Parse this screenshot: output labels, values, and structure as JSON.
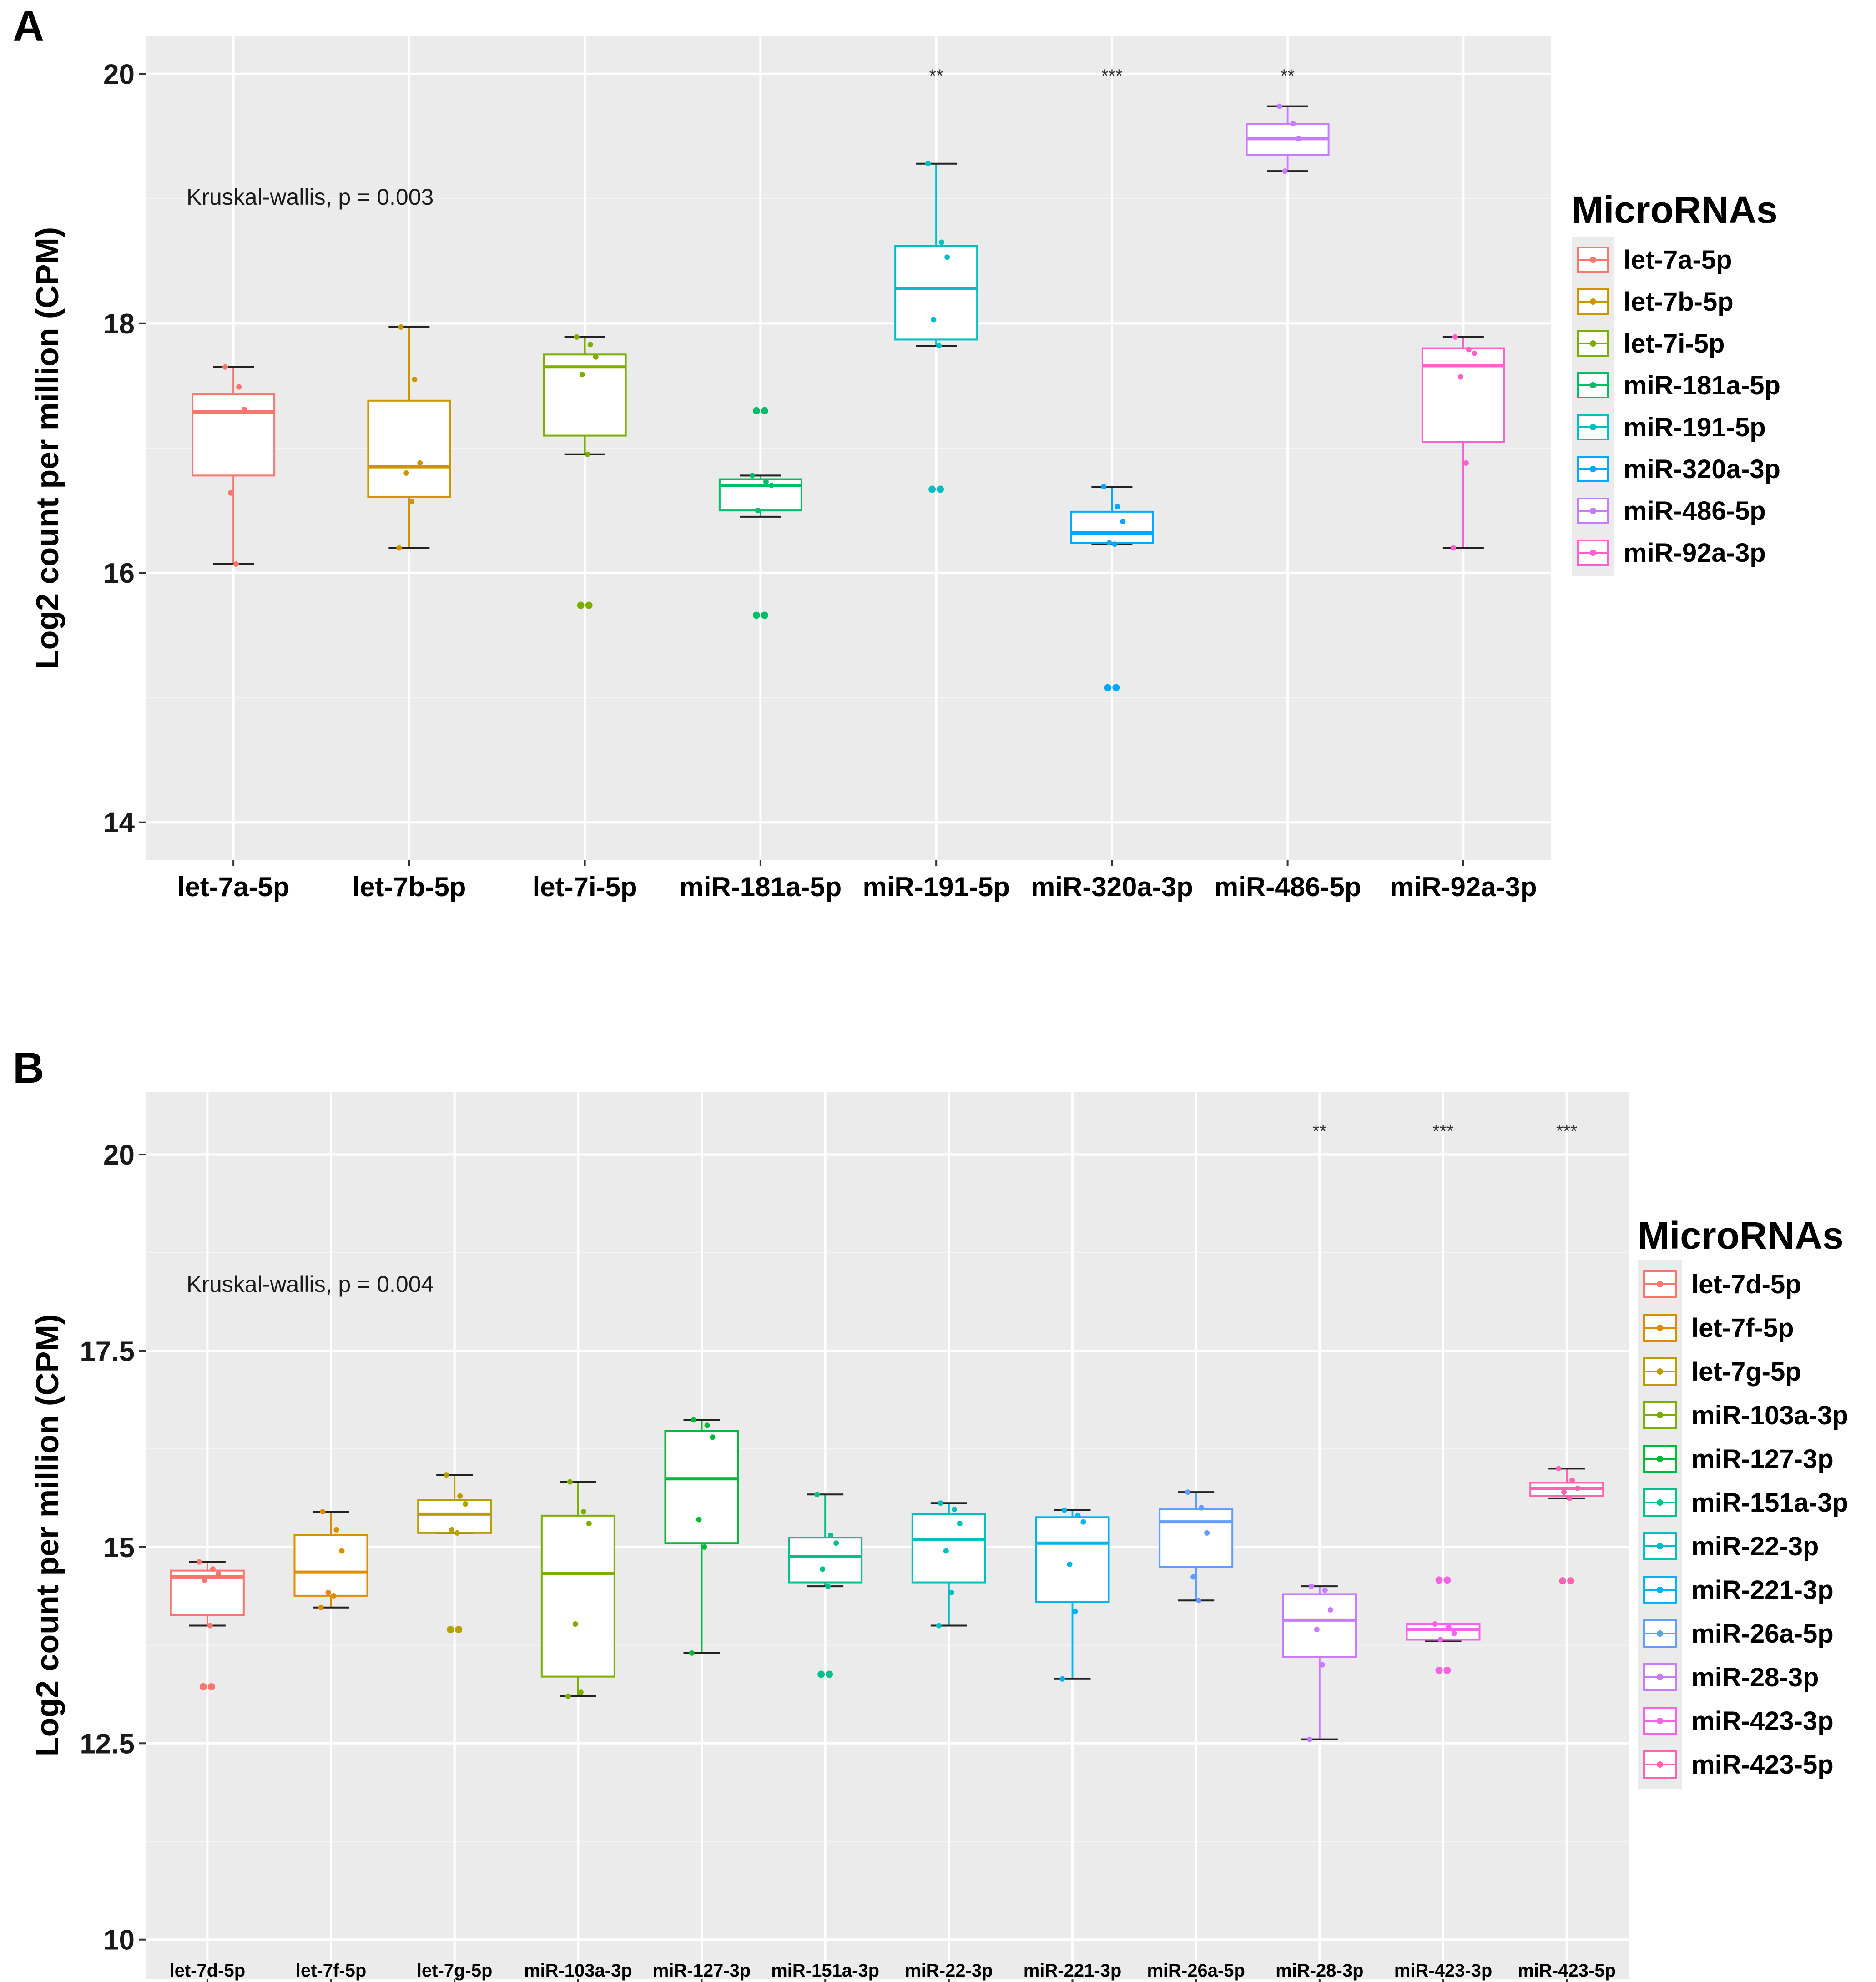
{
  "chart_data": [
    {
      "panel": "A",
      "type": "box",
      "ylabel": "Log2 count per million (CPM)",
      "ylim": [
        13.7,
        20.3
      ],
      "yticks": [
        14,
        16,
        18,
        20
      ],
      "ytick_labels": [
        "14",
        "16",
        "18",
        "20"
      ],
      "annotation": "Kruskal-wallis, p = 0.003",
      "legend_title": "MicroRNAs",
      "categories": [
        "let-7a-5p",
        "let-7b-5p",
        "let-7i-5p",
        "miR-181a-5p",
        "miR-191-5p",
        "miR-320a-3p",
        "miR-486-5p",
        "miR-92a-3p"
      ],
      "colors": [
        "#F8766D",
        "#CD9600",
        "#7CAE00",
        "#00BE67",
        "#00BFC4",
        "#00A9FF",
        "#C77CFF",
        "#FF61CC"
      ],
      "significance": [
        "",
        "",
        "",
        "",
        "**",
        "***",
        "**",
        ""
      ],
      "boxes": [
        {
          "whisker_low": 16.07,
          "q1": 16.78,
          "median": 17.29,
          "q3": 17.43,
          "whisker_high": 17.65,
          "outliers": [],
          "points": [
            17.65,
            17.49,
            17.31,
            16.64,
            16.07
          ]
        },
        {
          "whisker_low": 16.2,
          "q1": 16.61,
          "median": 16.85,
          "q3": 17.38,
          "whisker_high": 17.97,
          "outliers": [],
          "points": [
            17.97,
            17.55,
            16.88,
            16.8,
            16.57,
            16.2
          ]
        },
        {
          "whisker_low": 16.95,
          "q1": 17.1,
          "median": 17.65,
          "q3": 17.75,
          "whisker_high": 17.89,
          "outliers": [
            15.74
          ],
          "points": [
            17.89,
            17.83,
            17.73,
            17.59,
            16.95
          ]
        },
        {
          "whisker_low": 16.45,
          "q1": 16.5,
          "median": 16.7,
          "q3": 16.75,
          "whisker_high": 16.78,
          "outliers": [
            17.3,
            15.66
          ],
          "points": [
            16.78,
            16.73,
            16.7,
            16.5
          ]
        },
        {
          "whisker_low": 17.82,
          "q1": 17.87,
          "median": 18.28,
          "q3": 18.62,
          "whisker_high": 19.28,
          "outliers": [
            16.67
          ],
          "points": [
            19.28,
            18.65,
            18.53,
            18.03,
            17.82
          ]
        },
        {
          "whisker_low": 16.23,
          "q1": 16.24,
          "median": 16.32,
          "q3": 16.49,
          "whisker_high": 16.69,
          "outliers": [
            15.08
          ],
          "points": [
            16.69,
            16.53,
            16.41,
            16.24,
            16.23
          ]
        },
        {
          "whisker_low": 19.22,
          "q1": 19.35,
          "median": 19.48,
          "q3": 19.6,
          "whisker_high": 19.74,
          "outliers": [],
          "points": [
            19.74,
            19.6,
            19.48,
            19.22
          ]
        },
        {
          "whisker_low": 16.2,
          "q1": 17.05,
          "median": 17.66,
          "q3": 17.8,
          "whisker_high": 17.89,
          "outliers": [],
          "points": [
            17.89,
            17.79,
            17.76,
            17.57,
            16.88,
            16.2
          ]
        }
      ]
    },
    {
      "panel": "B",
      "type": "box",
      "ylabel": "Log2 count per million (CPM)",
      "ylim": [
        9.5,
        20.8
      ],
      "yticks": [
        10,
        12.5,
        15,
        17.5,
        20
      ],
      "ytick_labels": [
        "10",
        "12.5",
        "15",
        "17.5",
        "20"
      ],
      "annotation": "Kruskal-wallis, p = 0.004",
      "legend_title": "MicroRNAs",
      "categories": [
        "let-7d-5p",
        "let-7f-5p",
        "let-7g-5p",
        "miR-103a-3p",
        "miR-127-3p",
        "miR-151a-3p",
        "miR-22-3p",
        "miR-221-3p",
        "miR-26a-5p",
        "miR-28-3p",
        "miR-423-3p",
        "miR-423-5p"
      ],
      "colors": [
        "#F8766D",
        "#DE8C00",
        "#B79F00",
        "#7CAE00",
        "#00BA38",
        "#00C08B",
        "#00BFC4",
        "#00B4F0",
        "#619CFF",
        "#C77CFF",
        "#F564E3",
        "#FF64B0"
      ],
      "significance": [
        "",
        "",
        "",
        "",
        "",
        "",
        "",
        "",
        "",
        "**",
        "***",
        "***"
      ],
      "boxes": [
        {
          "whisker_low": 14.0,
          "q1": 14.13,
          "median": 14.62,
          "q3": 14.7,
          "whisker_high": 14.81,
          "outliers": [
            13.22
          ],
          "points": [
            14.81,
            14.72,
            14.66,
            14.58,
            14.0
          ]
        },
        {
          "whisker_low": 14.23,
          "q1": 14.38,
          "median": 14.68,
          "q3": 15.15,
          "whisker_high": 15.45,
          "outliers": [],
          "points": [
            15.45,
            15.22,
            14.95,
            14.42,
            14.38,
            14.23
          ]
        },
        {
          "whisker_low": 15.18,
          "q1": 15.18,
          "median": 15.42,
          "q3": 15.6,
          "whisker_high": 15.92,
          "outliers": [
            13.95
          ],
          "points": [
            15.92,
            15.65,
            15.55,
            15.22,
            15.18
          ]
        },
        {
          "whisker_low": 13.1,
          "q1": 13.35,
          "median": 14.66,
          "q3": 15.4,
          "whisker_high": 15.83,
          "outliers": [],
          "points": [
            15.83,
            15.45,
            15.3,
            14.02,
            13.15,
            13.1
          ]
        },
        {
          "whisker_low": 13.65,
          "q1": 15.05,
          "median": 15.87,
          "q3": 16.48,
          "whisker_high": 16.62,
          "outliers": [],
          "points": [
            16.62,
            16.55,
            16.4,
            15.35,
            15.0,
            13.65
          ]
        },
        {
          "whisker_low": 14.5,
          "q1": 14.55,
          "median": 14.88,
          "q3": 15.12,
          "whisker_high": 15.67,
          "outliers": [
            13.38
          ],
          "points": [
            15.67,
            15.15,
            15.05,
            14.72,
            14.5
          ]
        },
        {
          "whisker_low": 14.0,
          "q1": 14.55,
          "median": 15.1,
          "q3": 15.42,
          "whisker_high": 15.56,
          "outliers": [],
          "points": [
            15.56,
            15.48,
            15.3,
            14.95,
            14.42,
            14.0
          ]
        },
        {
          "whisker_low": 13.32,
          "q1": 14.3,
          "median": 15.05,
          "q3": 15.38,
          "whisker_high": 15.47,
          "outliers": [],
          "points": [
            15.47,
            15.4,
            15.32,
            14.78,
            14.18,
            13.32
          ]
        },
        {
          "whisker_low": 14.32,
          "q1": 14.75,
          "median": 15.32,
          "q3": 15.48,
          "whisker_high": 15.7,
          "outliers": [],
          "points": [
            15.7,
            15.5,
            15.18,
            14.62,
            14.32
          ]
        },
        {
          "whisker_low": 12.55,
          "q1": 13.6,
          "median": 14.07,
          "q3": 14.4,
          "whisker_high": 14.5,
          "outliers": [],
          "points": [
            14.5,
            14.45,
            14.2,
            13.95,
            13.5,
            12.55
          ]
        },
        {
          "whisker_low": 13.8,
          "q1": 13.82,
          "median": 13.95,
          "q3": 14.02,
          "whisker_high": 14.02,
          "outliers": [
            14.58,
            13.43
          ],
          "points": [
            14.02,
            13.98,
            13.9,
            13.82
          ]
        },
        {
          "whisker_low": 15.62,
          "q1": 15.65,
          "median": 15.75,
          "q3": 15.82,
          "whisker_high": 16.0,
          "outliers": [
            14.57
          ],
          "points": [
            16.0,
            15.85,
            15.75,
            15.7,
            15.62
          ]
        }
      ]
    }
  ]
}
